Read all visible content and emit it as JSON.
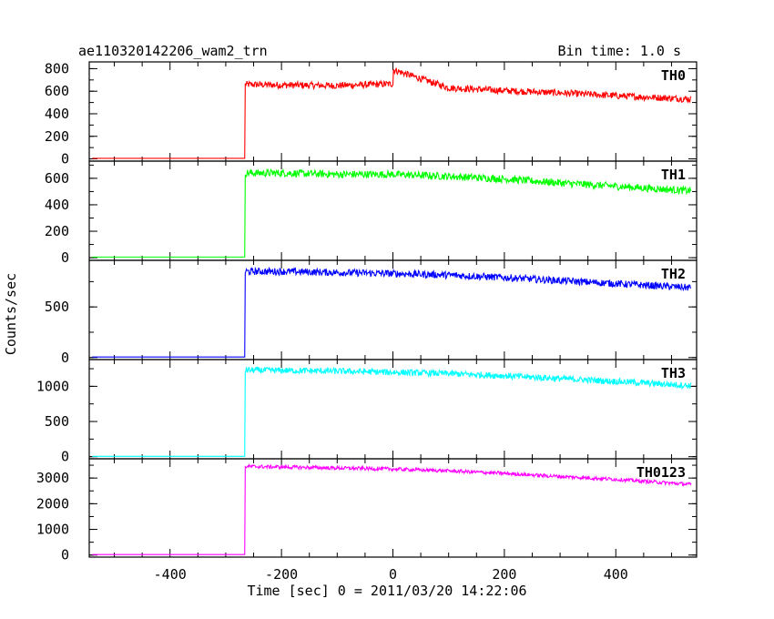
{
  "chart_data": {
    "type": "line",
    "title": "ae110320142206_wam2_trn",
    "subtitle": "Bin time: 1.0 s",
    "xlabel": "Time [sec] 0 = 2011/03/20 14:22:06",
    "ylabel": "Counts/sec",
    "xlim": [
      -545,
      545
    ],
    "x_ticks": [
      -400,
      -200,
      0,
      200,
      400
    ],
    "onset_x": -265,
    "end_x": 535,
    "series": [
      {
        "name": "TH0",
        "color": "#ff0000",
        "ylim": [
          -20,
          860
        ],
        "y_ticks": [
          0,
          200,
          400,
          600,
          800
        ],
        "pre_level": 5,
        "x": [
          -265,
          -200,
          -100,
          0,
          1,
          100,
          200,
          300,
          400,
          535
        ],
        "y": [
          660,
          655,
          650,
          665,
          790,
          630,
          605,
          585,
          560,
          530
        ],
        "noise": 30
      },
      {
        "name": "TH1",
        "color": "#00ff00",
        "ylim": [
          -20,
          730
        ],
        "y_ticks": [
          0,
          200,
          400,
          600
        ],
        "pre_level": 5,
        "x": [
          -265,
          -200,
          -100,
          0,
          100,
          200,
          300,
          400,
          535
        ],
        "y": [
          640,
          640,
          630,
          630,
          615,
          595,
          565,
          540,
          505
        ],
        "noise": 28
      },
      {
        "name": "TH2",
        "color": "#0000ff",
        "ylim": [
          -20,
          960
        ],
        "y_ticks": [
          0,
          500
        ],
        "pre_level": 5,
        "x": [
          -265,
          -200,
          -100,
          0,
          100,
          200,
          300,
          400,
          535
        ],
        "y": [
          850,
          850,
          840,
          830,
          815,
          790,
          760,
          730,
          690
        ],
        "noise": 35
      },
      {
        "name": "TH3",
        "color": "#00ffff",
        "ylim": [
          -30,
          1380
        ],
        "y_ticks": [
          0,
          500,
          1000
        ],
        "pre_level": 5,
        "x": [
          -265,
          -200,
          -100,
          0,
          100,
          200,
          300,
          400,
          535
        ],
        "y": [
          1230,
          1225,
          1215,
          1200,
          1180,
          1150,
          1110,
          1070,
          1010
        ],
        "noise": 45
      },
      {
        "name": "TH0123",
        "color": "#ff00ff",
        "ylim": [
          -80,
          3750
        ],
        "y_ticks": [
          0,
          1000,
          2000,
          3000
        ],
        "pre_level": 20,
        "x": [
          -265,
          -200,
          -100,
          0,
          100,
          200,
          300,
          400,
          535
        ],
        "y": [
          3450,
          3430,
          3390,
          3350,
          3280,
          3180,
          3060,
          2950,
          2750
        ],
        "noise": 70
      }
    ]
  }
}
